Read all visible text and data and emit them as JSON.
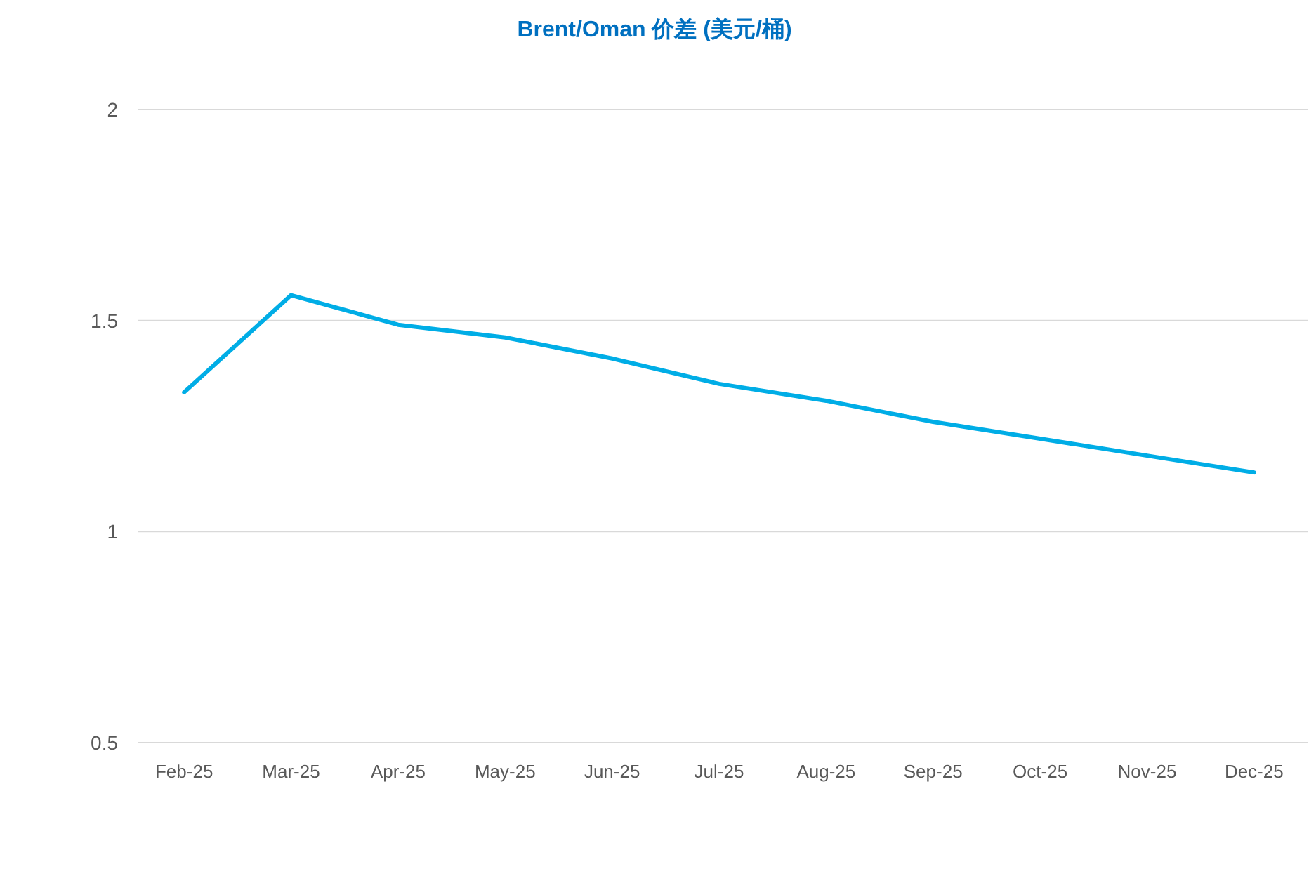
{
  "chart_data": {
    "type": "line",
    "title": "Brent/Oman 价差 (美元/桶)",
    "categories": [
      "Feb-25",
      "Mar-25",
      "Apr-25",
      "May-25",
      "Jun-25",
      "Jul-25",
      "Aug-25",
      "Sep-25",
      "Oct-25",
      "Nov-25",
      "Dec-25"
    ],
    "series": [
      {
        "color": "#00ade6",
        "values": [
          1.33,
          1.56,
          1.49,
          1.46,
          1.41,
          1.35,
          1.31,
          1.26,
          1.22,
          1.18,
          1.14
        ]
      }
    ],
    "ylim": [
      0.5,
      2
    ],
    "yticks": [
      0.5,
      1,
      1.5,
      2
    ],
    "grid": "y",
    "marker": "none",
    "line_style": "solid"
  }
}
